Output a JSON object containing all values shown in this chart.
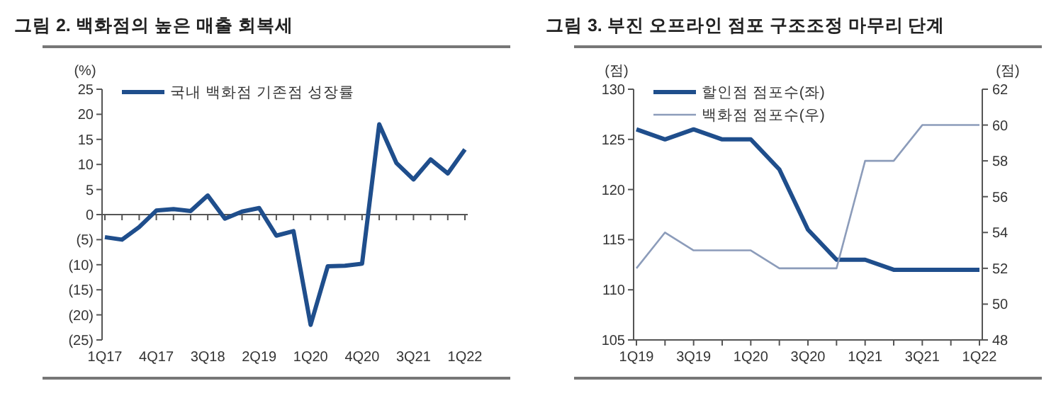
{
  "chart_data": [
    {
      "type": "line",
      "title": "그림 2. 백화점의 높은 매출 회복세",
      "ylabel": "(%)",
      "categories": [
        "1Q17",
        null,
        null,
        "4Q17",
        null,
        null,
        "3Q18",
        null,
        null,
        "2Q19",
        null,
        null,
        "1Q20",
        null,
        null,
        "4Q20",
        null,
        null,
        "3Q21",
        null,
        null,
        "1Q22"
      ],
      "series": [
        {
          "name": "국내 백화점 기존점 성장률",
          "color": "#1f4e8c",
          "values": [
            -4.5,
            -5,
            -2.5,
            0.8,
            1.1,
            0.7,
            3.8,
            -0.8,
            0.6,
            1.3,
            -4.2,
            -3.3,
            -22,
            -10.3,
            -10.2,
            -9.8,
            18,
            10.3,
            7,
            11,
            8.2,
            13
          ]
        }
      ],
      "ylim": [
        -25,
        25
      ],
      "yticks": [
        {
          "value": -25,
          "label": "(25)"
        },
        {
          "value": -20,
          "label": "(20)"
        },
        {
          "value": -15,
          "label": "(15)"
        },
        {
          "value": -10,
          "label": "(10)"
        },
        {
          "value": -5,
          "label": "(5)"
        },
        0,
        5,
        10,
        15,
        20,
        25
      ],
      "legend": "top left",
      "marker": "none"
    },
    {
      "type": "line",
      "title": "그림 3. 부진 오프라인 점포 구조조정 마무리 단계",
      "ylabel": "(점)",
      "y2label": "(점)",
      "categories": [
        "1Q19",
        null,
        "3Q19",
        null,
        "1Q20",
        null,
        "3Q20",
        null,
        "1Q21",
        null,
        "3Q21",
        null,
        "1Q22"
      ],
      "series": [
        {
          "name": "할인점 점포수(좌)",
          "color": "#1f4e8c",
          "values": [
            126,
            125,
            126,
            125,
            125,
            122,
            116,
            113,
            113,
            112,
            112,
            112,
            112
          ]
        },
        {
          "name": "백화점 점포수(우)",
          "color": "#8c9cba",
          "axis": "y2",
          "values": [
            52,
            54,
            53,
            53,
            53,
            52,
            52,
            52,
            58,
            58,
            60,
            60,
            60
          ]
        }
      ],
      "ylim": [
        105,
        130
      ],
      "yticks": [
        105,
        110,
        115,
        120,
        125,
        130
      ],
      "y2lim": [
        48,
        62
      ],
      "y2ticks": [
        48,
        50,
        52,
        54,
        56,
        58,
        60,
        62
      ],
      "grid": false,
      "legend": "top left",
      "marker": "none"
    }
  ]
}
